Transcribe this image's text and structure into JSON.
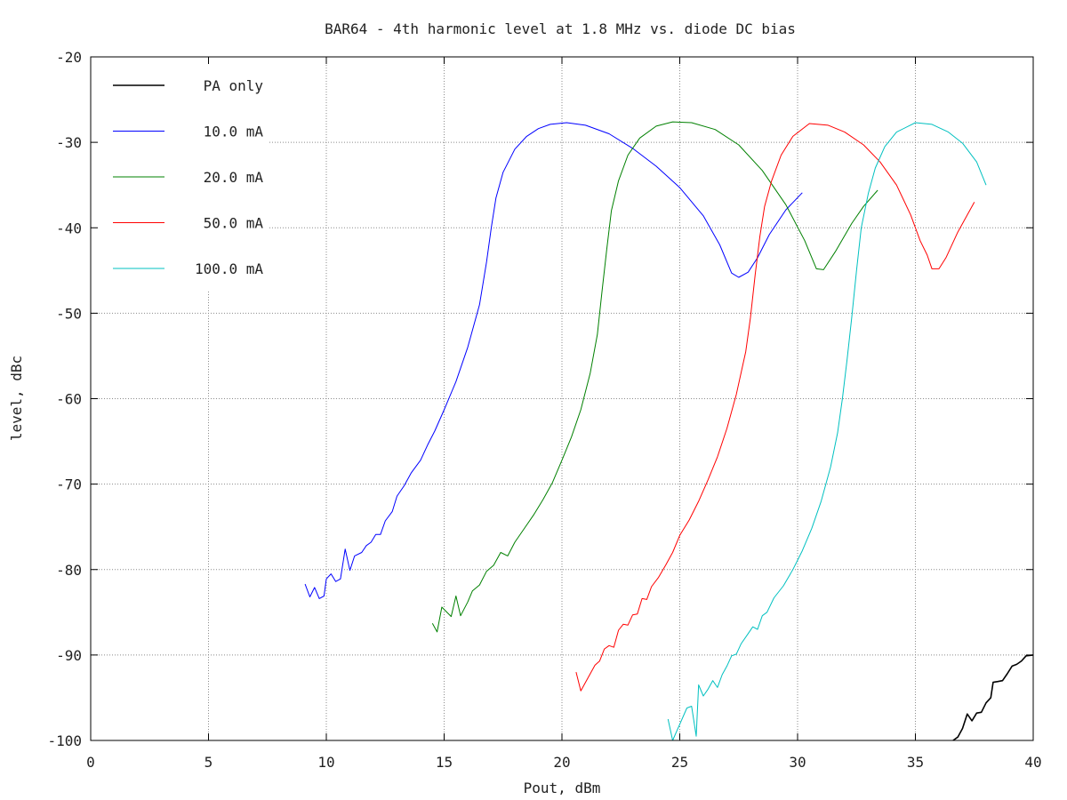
{
  "chart_data": {
    "type": "line",
    "title": "BAR64 - 4th harmonic level at 1.8 MHz vs. diode DC bias",
    "xlabel": "Pout, dBm",
    "ylabel": "level, dBc",
    "xlim": [
      0,
      40
    ],
    "ylim": [
      -100,
      -20
    ],
    "xticks": [
      0,
      5,
      10,
      15,
      20,
      25,
      30,
      35,
      40
    ],
    "yticks": [
      -20,
      -30,
      -40,
      -50,
      -60,
      -70,
      -80,
      -90,
      -100
    ],
    "grid": true,
    "legend_position": "top-left",
    "series": [
      {
        "name": "PA only",
        "color": "#000000",
        "points": [
          [
            36.6,
            -100
          ],
          [
            36.8,
            -99.6
          ],
          [
            37.0,
            -98.6
          ],
          [
            37.2,
            -96.9
          ],
          [
            37.4,
            -97.7
          ],
          [
            37.6,
            -96.8
          ],
          [
            37.8,
            -96.7
          ],
          [
            38.0,
            -95.6
          ],
          [
            38.2,
            -95.0
          ],
          [
            38.3,
            -93.2
          ],
          [
            38.5,
            -93.1
          ],
          [
            38.7,
            -93.0
          ],
          [
            38.9,
            -92.2
          ],
          [
            39.1,
            -91.3
          ],
          [
            39.3,
            -91.1
          ],
          [
            39.5,
            -90.7
          ],
          [
            39.7,
            -90.1
          ],
          [
            40.0,
            -90.0
          ]
        ]
      },
      {
        "name": "10.0 mA",
        "color": "#0000ff",
        "points": [
          [
            9.1,
            -81.7
          ],
          [
            9.3,
            -83.2
          ],
          [
            9.5,
            -82.1
          ],
          [
            9.7,
            -83.4
          ],
          [
            9.9,
            -83.1
          ],
          [
            10.0,
            -81.1
          ],
          [
            10.2,
            -80.5
          ],
          [
            10.4,
            -81.4
          ],
          [
            10.6,
            -81.1
          ],
          [
            10.8,
            -77.6
          ],
          [
            11.0,
            -80.1
          ],
          [
            11.2,
            -78.4
          ],
          [
            11.5,
            -78.0
          ],
          [
            11.7,
            -77.2
          ],
          [
            11.9,
            -76.8
          ],
          [
            12.1,
            -75.9
          ],
          [
            12.3,
            -75.9
          ],
          [
            12.5,
            -74.3
          ],
          [
            12.8,
            -73.2
          ],
          [
            13.0,
            -71.4
          ],
          [
            13.3,
            -70.2
          ],
          [
            13.6,
            -68.7
          ],
          [
            14.0,
            -67.2
          ],
          [
            14.3,
            -65.4
          ],
          [
            14.6,
            -63.8
          ],
          [
            15.0,
            -61.3
          ],
          [
            15.5,
            -58.0
          ],
          [
            16.0,
            -54.0
          ],
          [
            16.5,
            -49.0
          ],
          [
            16.8,
            -44.0
          ],
          [
            17.0,
            -40.0
          ],
          [
            17.2,
            -36.5
          ],
          [
            17.5,
            -33.5
          ],
          [
            18.0,
            -30.8
          ],
          [
            18.5,
            -29.3
          ],
          [
            19.0,
            -28.4
          ],
          [
            19.5,
            -27.9
          ],
          [
            20.2,
            -27.7
          ],
          [
            21.0,
            -28.0
          ],
          [
            22.0,
            -29.0
          ],
          [
            23.0,
            -30.7
          ],
          [
            24.0,
            -32.8
          ],
          [
            25.0,
            -35.3
          ],
          [
            26.0,
            -38.6
          ],
          [
            26.7,
            -42.0
          ],
          [
            27.2,
            -45.3
          ],
          [
            27.5,
            -45.8
          ],
          [
            27.9,
            -45.2
          ],
          [
            28.3,
            -43.5
          ],
          [
            28.8,
            -40.8
          ],
          [
            29.5,
            -37.9
          ],
          [
            30.2,
            -35.9
          ]
        ]
      },
      {
        "name": "20.0 mA",
        "color": "#008000",
        "points": [
          [
            14.5,
            -86.3
          ],
          [
            14.7,
            -87.3
          ],
          [
            14.9,
            -84.4
          ],
          [
            15.3,
            -85.5
          ],
          [
            15.5,
            -83.1
          ],
          [
            15.7,
            -85.4
          ],
          [
            16.0,
            -83.8
          ],
          [
            16.2,
            -82.5
          ],
          [
            16.5,
            -81.8
          ],
          [
            16.8,
            -80.2
          ],
          [
            17.1,
            -79.5
          ],
          [
            17.4,
            -78.0
          ],
          [
            17.7,
            -78.4
          ],
          [
            18.0,
            -76.8
          ],
          [
            18.4,
            -75.2
          ],
          [
            18.8,
            -73.6
          ],
          [
            19.2,
            -71.8
          ],
          [
            19.6,
            -69.8
          ],
          [
            20.0,
            -67.2
          ],
          [
            20.4,
            -64.5
          ],
          [
            20.8,
            -61.3
          ],
          [
            21.2,
            -57.0
          ],
          [
            21.5,
            -52.5
          ],
          [
            21.7,
            -47.5
          ],
          [
            21.9,
            -42.5
          ],
          [
            22.1,
            -38.0
          ],
          [
            22.4,
            -34.5
          ],
          [
            22.8,
            -31.5
          ],
          [
            23.3,
            -29.5
          ],
          [
            24.0,
            -28.1
          ],
          [
            24.7,
            -27.6
          ],
          [
            25.5,
            -27.7
          ],
          [
            26.5,
            -28.5
          ],
          [
            27.5,
            -30.3
          ],
          [
            28.5,
            -33.3
          ],
          [
            29.5,
            -37.3
          ],
          [
            30.3,
            -41.5
          ],
          [
            30.8,
            -44.8
          ],
          [
            31.1,
            -44.9
          ],
          [
            31.6,
            -42.8
          ],
          [
            32.3,
            -39.5
          ],
          [
            32.8,
            -37.5
          ],
          [
            33.4,
            -35.6
          ]
        ]
      },
      {
        "name": "50.0 mA",
        "color": "#ff0000",
        "points": [
          [
            20.6,
            -92.0
          ],
          [
            20.8,
            -94.2
          ],
          [
            21.0,
            -93.2
          ],
          [
            21.2,
            -92.2
          ],
          [
            21.4,
            -91.2
          ],
          [
            21.6,
            -90.7
          ],
          [
            21.8,
            -89.3
          ],
          [
            22.0,
            -88.9
          ],
          [
            22.2,
            -89.1
          ],
          [
            22.4,
            -87.1
          ],
          [
            22.6,
            -86.4
          ],
          [
            22.8,
            -86.5
          ],
          [
            23.0,
            -85.3
          ],
          [
            23.2,
            -85.2
          ],
          [
            23.4,
            -83.4
          ],
          [
            23.6,
            -83.5
          ],
          [
            23.8,
            -82.0
          ],
          [
            24.1,
            -80.9
          ],
          [
            24.4,
            -79.5
          ],
          [
            24.7,
            -78.0
          ],
          [
            25.0,
            -76.0
          ],
          [
            25.4,
            -74.2
          ],
          [
            25.8,
            -72.0
          ],
          [
            26.2,
            -69.5
          ],
          [
            26.6,
            -66.8
          ],
          [
            27.0,
            -63.5
          ],
          [
            27.4,
            -59.5
          ],
          [
            27.8,
            -54.5
          ],
          [
            28.0,
            -50.5
          ],
          [
            28.2,
            -45.5
          ],
          [
            28.4,
            -41.0
          ],
          [
            28.6,
            -37.5
          ],
          [
            28.9,
            -34.5
          ],
          [
            29.3,
            -31.5
          ],
          [
            29.8,
            -29.3
          ],
          [
            30.5,
            -27.8
          ],
          [
            31.3,
            -28.0
          ],
          [
            32.0,
            -28.8
          ],
          [
            32.8,
            -30.3
          ],
          [
            33.5,
            -32.3
          ],
          [
            34.2,
            -35.0
          ],
          [
            34.8,
            -38.5
          ],
          [
            35.2,
            -41.5
          ],
          [
            35.5,
            -43.2
          ],
          [
            35.7,
            -44.8
          ],
          [
            36.0,
            -44.8
          ],
          [
            36.3,
            -43.5
          ],
          [
            36.8,
            -40.5
          ],
          [
            37.5,
            -37.0
          ]
        ]
      },
      {
        "name": "100.0 mA",
        "color": "#00c0c0",
        "points": [
          [
            24.5,
            -97.5
          ],
          [
            24.7,
            -100
          ],
          [
            25.3,
            -96.2
          ],
          [
            25.5,
            -96.0
          ],
          [
            25.7,
            -99.5
          ],
          [
            25.8,
            -93.5
          ],
          [
            26.0,
            -94.8
          ],
          [
            26.2,
            -94.0
          ],
          [
            26.4,
            -93.0
          ],
          [
            26.6,
            -93.8
          ],
          [
            26.8,
            -92.3
          ],
          [
            27.0,
            -91.3
          ],
          [
            27.2,
            -90.1
          ],
          [
            27.4,
            -89.9
          ],
          [
            27.6,
            -88.7
          ],
          [
            27.9,
            -87.5
          ],
          [
            28.1,
            -86.7
          ],
          [
            28.3,
            -87.0
          ],
          [
            28.5,
            -85.4
          ],
          [
            28.7,
            -85.0
          ],
          [
            29.0,
            -83.3
          ],
          [
            29.4,
            -81.9
          ],
          [
            29.8,
            -80.0
          ],
          [
            30.2,
            -77.8
          ],
          [
            30.6,
            -75.2
          ],
          [
            31.0,
            -72.0
          ],
          [
            31.4,
            -68.0
          ],
          [
            31.7,
            -64.0
          ],
          [
            31.9,
            -60.0
          ],
          [
            32.1,
            -55.5
          ],
          [
            32.3,
            -50.5
          ],
          [
            32.5,
            -45.0
          ],
          [
            32.7,
            -40.0
          ],
          [
            33.0,
            -36.0
          ],
          [
            33.3,
            -33.0
          ],
          [
            33.7,
            -30.5
          ],
          [
            34.2,
            -28.8
          ],
          [
            35.0,
            -27.7
          ],
          [
            35.7,
            -27.9
          ],
          [
            36.4,
            -28.8
          ],
          [
            37.0,
            -30.1
          ],
          [
            37.6,
            -32.3
          ],
          [
            38.0,
            -35.0
          ]
        ]
      }
    ]
  }
}
